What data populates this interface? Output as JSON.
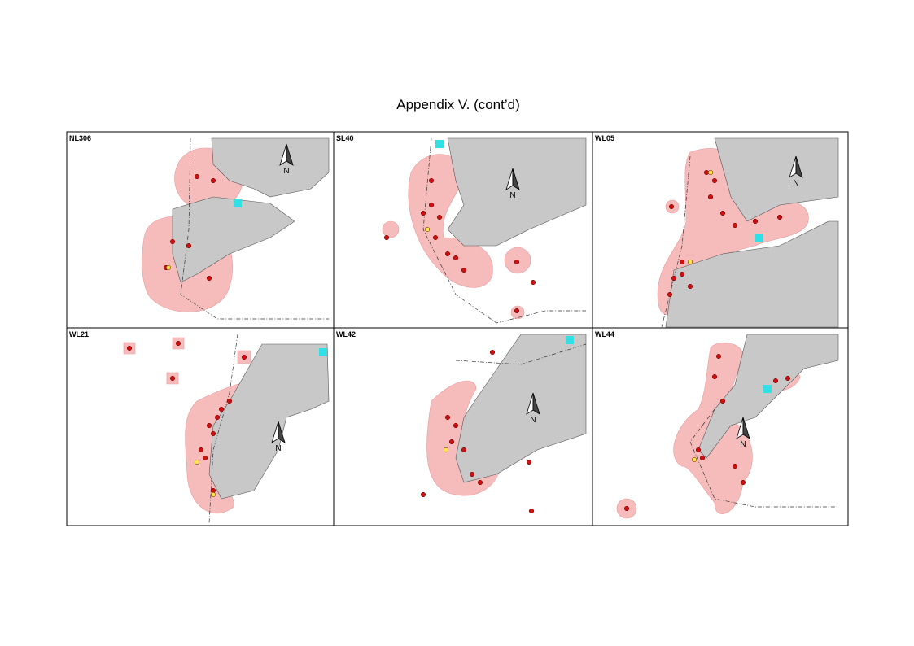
{
  "title": "Appendix V.  (cont’d)",
  "panels": [
    {
      "label": "NL306",
      "north": "N"
    },
    {
      "label": "SL40",
      "north": "N"
    },
    {
      "label": "WL05",
      "north": "N"
    },
    {
      "label": "WL21",
      "north": "N"
    },
    {
      "label": "WL42",
      "north": "N"
    },
    {
      "label": "WL44",
      "north": "N"
    }
  ]
}
